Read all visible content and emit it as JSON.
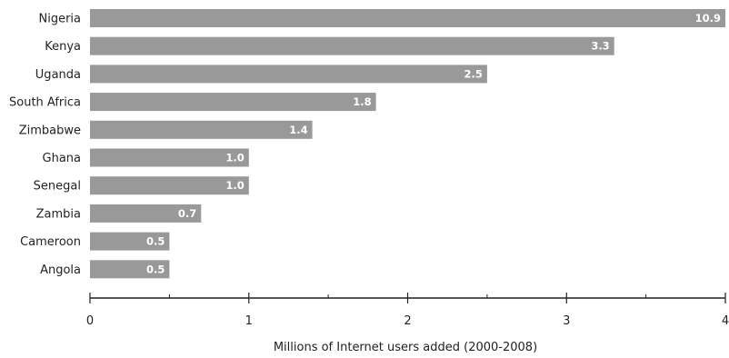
{
  "chart_data": {
    "type": "bar",
    "orientation": "horizontal",
    "categories": [
      "Nigeria",
      "Kenya",
      "Uganda",
      "South Africa",
      "Zimbabwe",
      "Ghana",
      "Senegal",
      "Zambia",
      "Cameroon",
      "Angola"
    ],
    "values": [
      10.9,
      3.3,
      2.5,
      1.8,
      1.4,
      1.0,
      1.0,
      0.7,
      0.5,
      0.5
    ],
    "value_labels": [
      "10.9",
      "3.3",
      "2.5",
      "1.8",
      "1.4",
      "1.0",
      "1.0",
      "0.7",
      "0.5",
      "0.5"
    ],
    "xlabel": "Millions of Internet users added (2000-2008)",
    "x_ticks": [
      "0",
      "1",
      "2",
      "3",
      "4"
    ],
    "xlim": [
      0,
      4
    ],
    "axis_break": true,
    "bar_color": "#999999",
    "grid": false,
    "legend": "none"
  }
}
